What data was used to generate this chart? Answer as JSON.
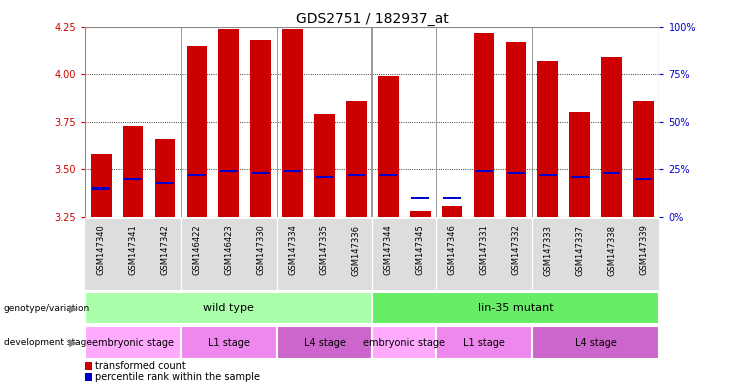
{
  "title": "GDS2751 / 182937_at",
  "samples": [
    "GSM147340",
    "GSM147341",
    "GSM147342",
    "GSM146422",
    "GSM146423",
    "GSM147330",
    "GSM147334",
    "GSM147335",
    "GSM147336",
    "GSM147344",
    "GSM147345",
    "GSM147346",
    "GSM147331",
    "GSM147332",
    "GSM147333",
    "GSM147337",
    "GSM147338",
    "GSM147339"
  ],
  "transformed_count": [
    3.58,
    3.73,
    3.66,
    4.15,
    4.24,
    4.18,
    4.24,
    3.79,
    3.86,
    3.99,
    3.28,
    3.31,
    4.22,
    4.17,
    4.07,
    3.8,
    4.09,
    3.86
  ],
  "percentile_vals": [
    15,
    20,
    18,
    22,
    24,
    23,
    24,
    21,
    22,
    22,
    10,
    10,
    24,
    23,
    22,
    21,
    23,
    20
  ],
  "ylim": [
    3.25,
    4.25
  ],
  "yticks_left": [
    3.25,
    3.5,
    3.75,
    4.0,
    4.25
  ],
  "yticks_right": [
    0,
    25,
    50,
    75,
    100
  ],
  "bar_color": "#cc0000",
  "percentile_color": "#0000cc",
  "tick_label_color_left": "#cc0000",
  "tick_label_color_right": "#0000cc",
  "genotype_wt_color": "#aaffaa",
  "genotype_mut_color": "#66ee66",
  "stage_embryonic_color": "#ffaaff",
  "stage_L1_color": "#ee88ee",
  "stage_L4_color": "#cc66cc",
  "wt_label": "wild type",
  "mut_label": "lin-35 mutant",
  "stage_bands": [
    [
      0,
      3,
      "embryonic stage"
    ],
    [
      3,
      6,
      "L1 stage"
    ],
    [
      6,
      9,
      "L4 stage"
    ],
    [
      9,
      11,
      "embryonic stage"
    ],
    [
      11,
      14,
      "L1 stage"
    ],
    [
      14,
      18,
      "L4 stage"
    ]
  ],
  "stage_colors": [
    "#ffaaff",
    "#ee88ee",
    "#cc66cc",
    "#ffaaff",
    "#ee88ee",
    "#cc66cc"
  ],
  "group_separators": [
    2.5,
    5.5,
    8.5,
    10.5,
    13.5
  ],
  "major_separator": 8.5
}
